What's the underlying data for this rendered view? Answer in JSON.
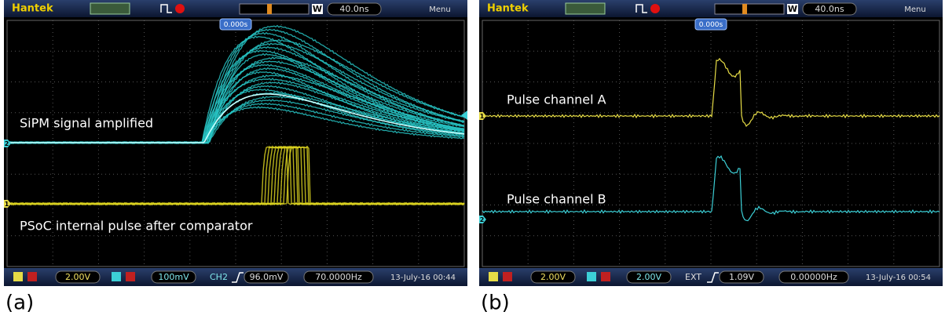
{
  "panels": [
    {
      "label": "(a)",
      "toolbar": {
        "brand": "Hantek",
        "w": "W",
        "timebase": "40.0ns",
        "menu": "Menu",
        "trigger_position": "0.000s"
      },
      "markers": {
        "ch1": "1",
        "ch2": "2"
      },
      "annotations": [
        "SiPM signal amplified",
        "PSoC internal pulse after comparator"
      ],
      "status": {
        "ch1_scale": "2.00V",
        "ch2_scale": "100mV",
        "trigger_source": "CH2",
        "trigger_level": "96.0mV",
        "frequency": "70.0000Hz",
        "datetime": "13-July-16 00:44"
      }
    },
    {
      "label": "(b)",
      "toolbar": {
        "brand": "Hantek",
        "w": "W",
        "timebase": "40.0ns",
        "menu": "Menu",
        "trigger_position": "0.000s"
      },
      "markers": {
        "ch1": "1",
        "ch2": "2"
      },
      "annotations": [
        "Pulse channel A",
        "Pulse channel B"
      ],
      "status": {
        "ch1_scale": "2.00V",
        "ch2_scale": "2.00V",
        "trigger_source": "EXT",
        "trigger_level": "1.09V",
        "frequency": "0.00000Hz",
        "datetime": "13-July-16 00:54"
      }
    }
  ]
}
